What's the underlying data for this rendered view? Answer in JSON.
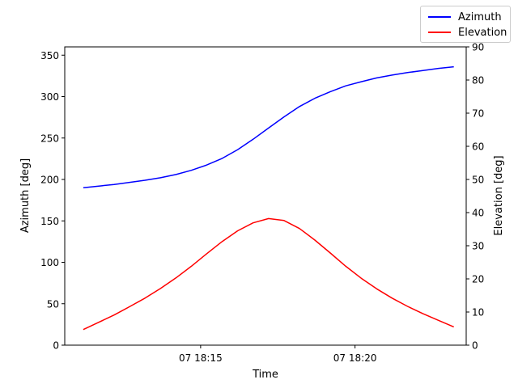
{
  "chart_data": {
    "type": "line",
    "xlabel": "Time",
    "y_left_label": "Azimuth [deg]",
    "y_right_label": "Elevation [deg]",
    "x_ticks": [
      {
        "label": "07 18:15",
        "minutes": 15
      },
      {
        "label": "07 18:20",
        "minutes": 20
      }
    ],
    "x_unit_note": "minutes after 18:00",
    "xlim": [
      10.6,
      23.6
    ],
    "y_left_lim": [
      0,
      360
    ],
    "y_left_ticks": [
      0,
      50,
      100,
      150,
      200,
      250,
      300,
      350
    ],
    "y_right_lim": [
      0,
      90
    ],
    "y_right_ticks": [
      0,
      10,
      20,
      30,
      40,
      50,
      60,
      70,
      80,
      90
    ],
    "grid": false,
    "legend_position": "top-right (figure)",
    "series": [
      {
        "name": "Azimuth",
        "axis": "left",
        "color": "#0000ff",
        "x": [
          11.2,
          11.7,
          12.2,
          12.7,
          13.2,
          13.7,
          14.2,
          14.7,
          15.2,
          15.7,
          16.2,
          16.7,
          17.2,
          17.7,
          18.2,
          18.7,
          19.2,
          19.7,
          20.2,
          20.7,
          21.2,
          21.7,
          22.2,
          22.7,
          23.2
        ],
        "values": [
          190,
          192,
          194,
          196.5,
          199,
          202,
          206,
          211,
          217.5,
          225.5,
          236,
          248.5,
          262,
          275.5,
          288,
          298,
          306,
          313,
          318,
          322.5,
          326,
          329,
          331.5,
          334,
          336
        ]
      },
      {
        "name": "Elevation",
        "axis": "right",
        "color": "#ff0000",
        "x": [
          11.2,
          11.7,
          12.2,
          12.7,
          13.2,
          13.7,
          14.2,
          14.7,
          15.2,
          15.7,
          16.2,
          16.7,
          17.2,
          17.7,
          18.2,
          18.7,
          19.2,
          19.7,
          20.2,
          20.7,
          21.2,
          21.7,
          22.2,
          22.7,
          23.2
        ],
        "values": [
          4.7,
          6.9,
          9.1,
          11.6,
          14.2,
          17.1,
          20.3,
          23.8,
          27.6,
          31.3,
          34.5,
          36.9,
          38.2,
          37.6,
          35.2,
          31.7,
          27.8,
          23.8,
          20.2,
          17.0,
          14.2,
          11.7,
          9.5,
          7.5,
          5.5
        ]
      }
    ]
  }
}
